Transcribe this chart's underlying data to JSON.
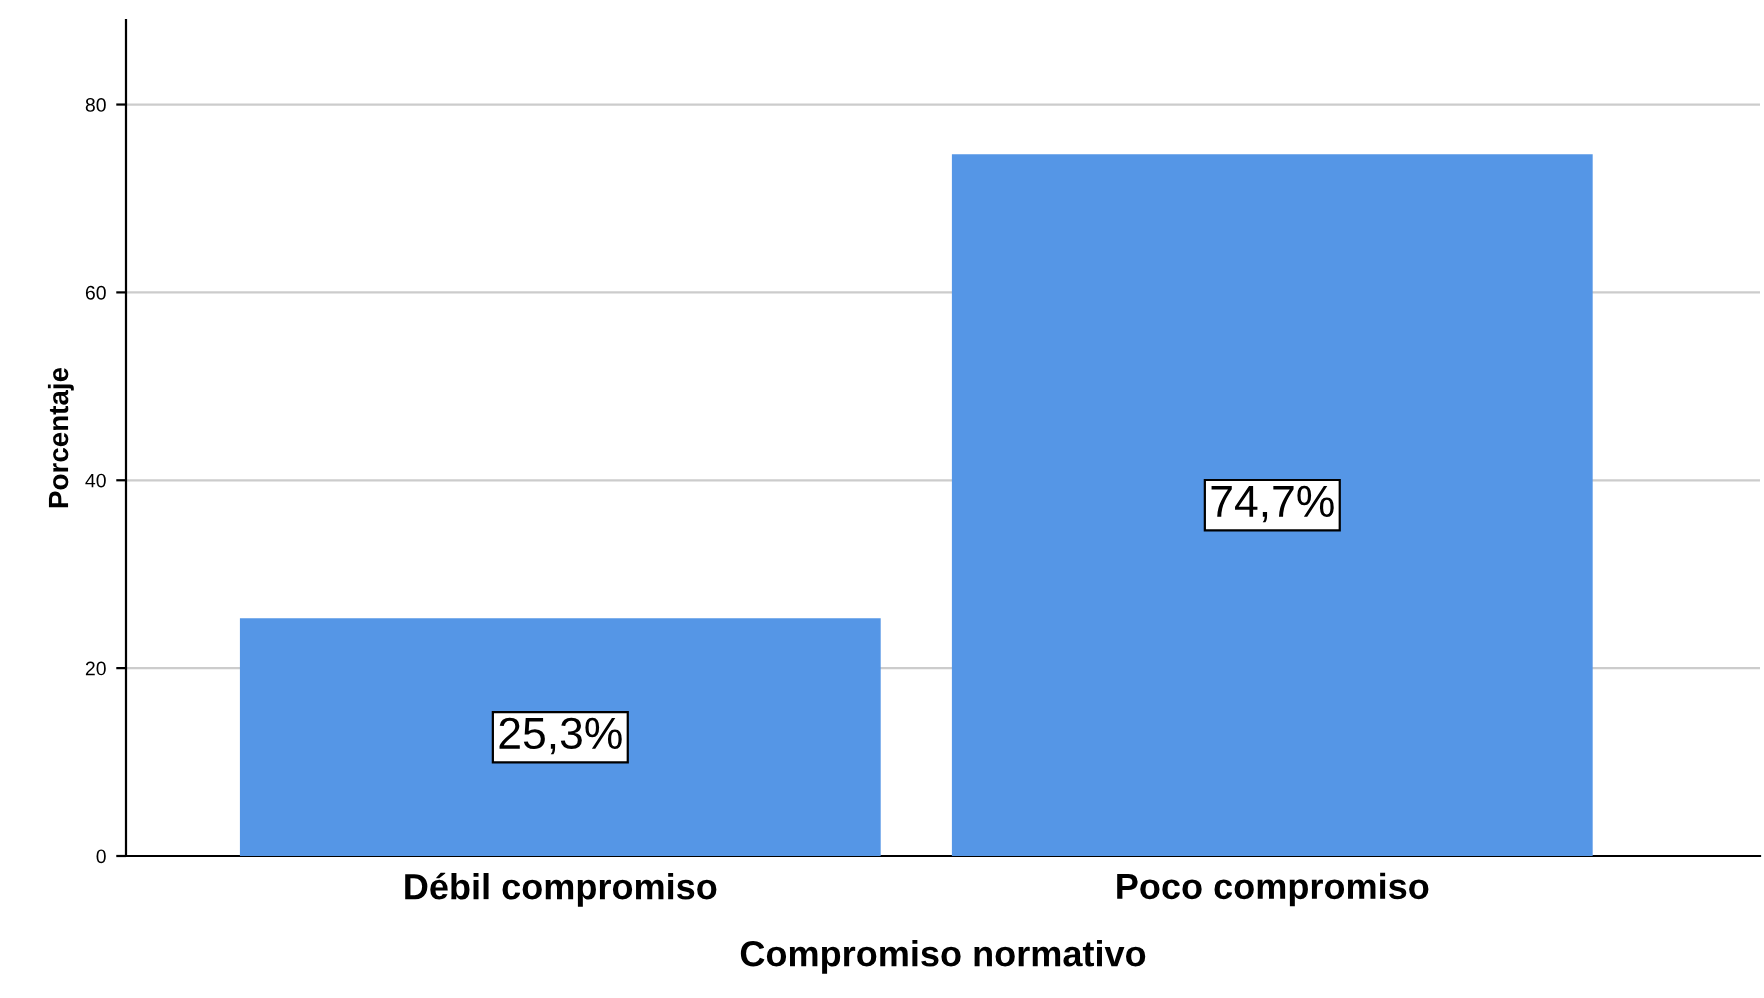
{
  "chart_data": {
    "type": "bar",
    "xlabel": "Compromiso normativo",
    "ylabel": "Porcentaje",
    "categories": [
      "Débil compromiso",
      "Poco compromiso"
    ],
    "values": [
      25.3,
      74.7
    ],
    "value_labels": [
      "25,3%",
      "74,7%"
    ],
    "color": "#5596e6",
    "ylim": [
      0,
      89
    ],
    "yticks": [
      0,
      20,
      40,
      60,
      80
    ],
    "grid": "y"
  }
}
